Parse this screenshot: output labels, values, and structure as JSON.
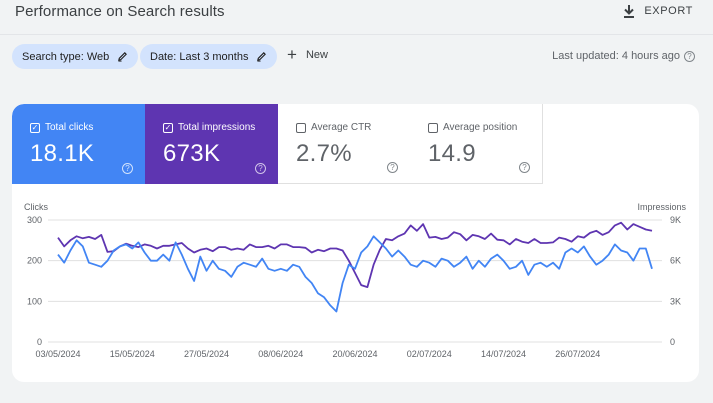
{
  "header": {
    "title": "Performance on Search results",
    "export_label": "EXPORT"
  },
  "filters": {
    "search_type": "Search type: Web",
    "date": "Date: Last 3 months",
    "new_label": "New",
    "last_updated": "Last updated: 4 hours ago"
  },
  "metrics": [
    {
      "label": "Total clicks",
      "value": "18.1K",
      "checked": true
    },
    {
      "label": "Total impressions",
      "value": "673K",
      "checked": true
    },
    {
      "label": "Average CTR",
      "value": "2.7%",
      "checked": false
    },
    {
      "label": "Average position",
      "value": "14.9",
      "checked": false
    }
  ],
  "colors": {
    "clicks": "#4285f4",
    "impressions": "#5e35b1"
  },
  "chart_data": {
    "type": "line",
    "ylabel_left": "Clicks",
    "ylabel_right": "Impressions",
    "y_left_ticks": [
      "0",
      "100",
      "200",
      "300"
    ],
    "y_left_range": [
      0,
      300
    ],
    "y_right_ticks": [
      "0",
      "3K",
      "6K",
      "9K"
    ],
    "y_right_range": [
      0,
      9000
    ],
    "x_tick_labels": [
      "03/05/2024",
      "15/05/2024",
      "27/05/2024",
      "08/06/2024",
      "20/06/2024",
      "02/07/2024",
      "14/07/2024",
      "26/07/2024"
    ],
    "x_tick_day_index": [
      0,
      12,
      24,
      36,
      48,
      60,
      72,
      84
    ],
    "series": [
      {
        "name": "Clicks",
        "axis": "left",
        "values": [
          215,
          195,
          225,
          250,
          235,
          195,
          190,
          185,
          200,
          225,
          235,
          240,
          230,
          245,
          220,
          200,
          200,
          215,
          200,
          245,
          215,
          180,
          150,
          210,
          175,
          200,
          180,
          175,
          160,
          185,
          195,
          190,
          185,
          205,
          180,
          175,
          180,
          175,
          190,
          185,
          160,
          145,
          120,
          110,
          90,
          75,
          145,
          190,
          180,
          220,
          235,
          260,
          245,
          230,
          210,
          225,
          210,
          190,
          185,
          200,
          195,
          185,
          205,
          200,
          185,
          195,
          210,
          180,
          200,
          185,
          205,
          215,
          200,
          180,
          185,
          200,
          165,
          190,
          195,
          185,
          195,
          180,
          220,
          230,
          220,
          235,
          210,
          190,
          200,
          215,
          240,
          225,
          220,
          200,
          230,
          230,
          180
        ]
      },
      {
        "name": "Impressions",
        "axis": "right",
        "values": [
          7700,
          7050,
          7500,
          7800,
          7650,
          7750,
          7600,
          7900,
          6650,
          6700,
          7050,
          7250,
          7100,
          7000,
          7200,
          7100,
          6900,
          7100,
          7100,
          7200,
          7300,
          6900,
          6600,
          6800,
          6900,
          6700,
          7000,
          7000,
          6800,
          6900,
          6800,
          7200,
          7000,
          7000,
          7100,
          6900,
          7200,
          7200,
          7000,
          7000,
          6950,
          6600,
          6800,
          6700,
          6900,
          6900,
          6750,
          6000,
          5100,
          4200,
          4050,
          5700,
          6800,
          7600,
          7500,
          7800,
          8000,
          8600,
          8200,
          8700,
          7700,
          7750,
          7600,
          7700,
          8100,
          7950,
          7500,
          7900,
          7800,
          7600,
          8000,
          7550,
          7500,
          7200,
          7600,
          7400,
          7300,
          7600,
          7300,
          7300,
          7350,
          7700,
          7600,
          7400,
          7800,
          7700,
          8050,
          8200,
          7900,
          8100,
          8600,
          8800,
          8300,
          8700,
          8500,
          8300,
          8200
        ]
      }
    ]
  }
}
